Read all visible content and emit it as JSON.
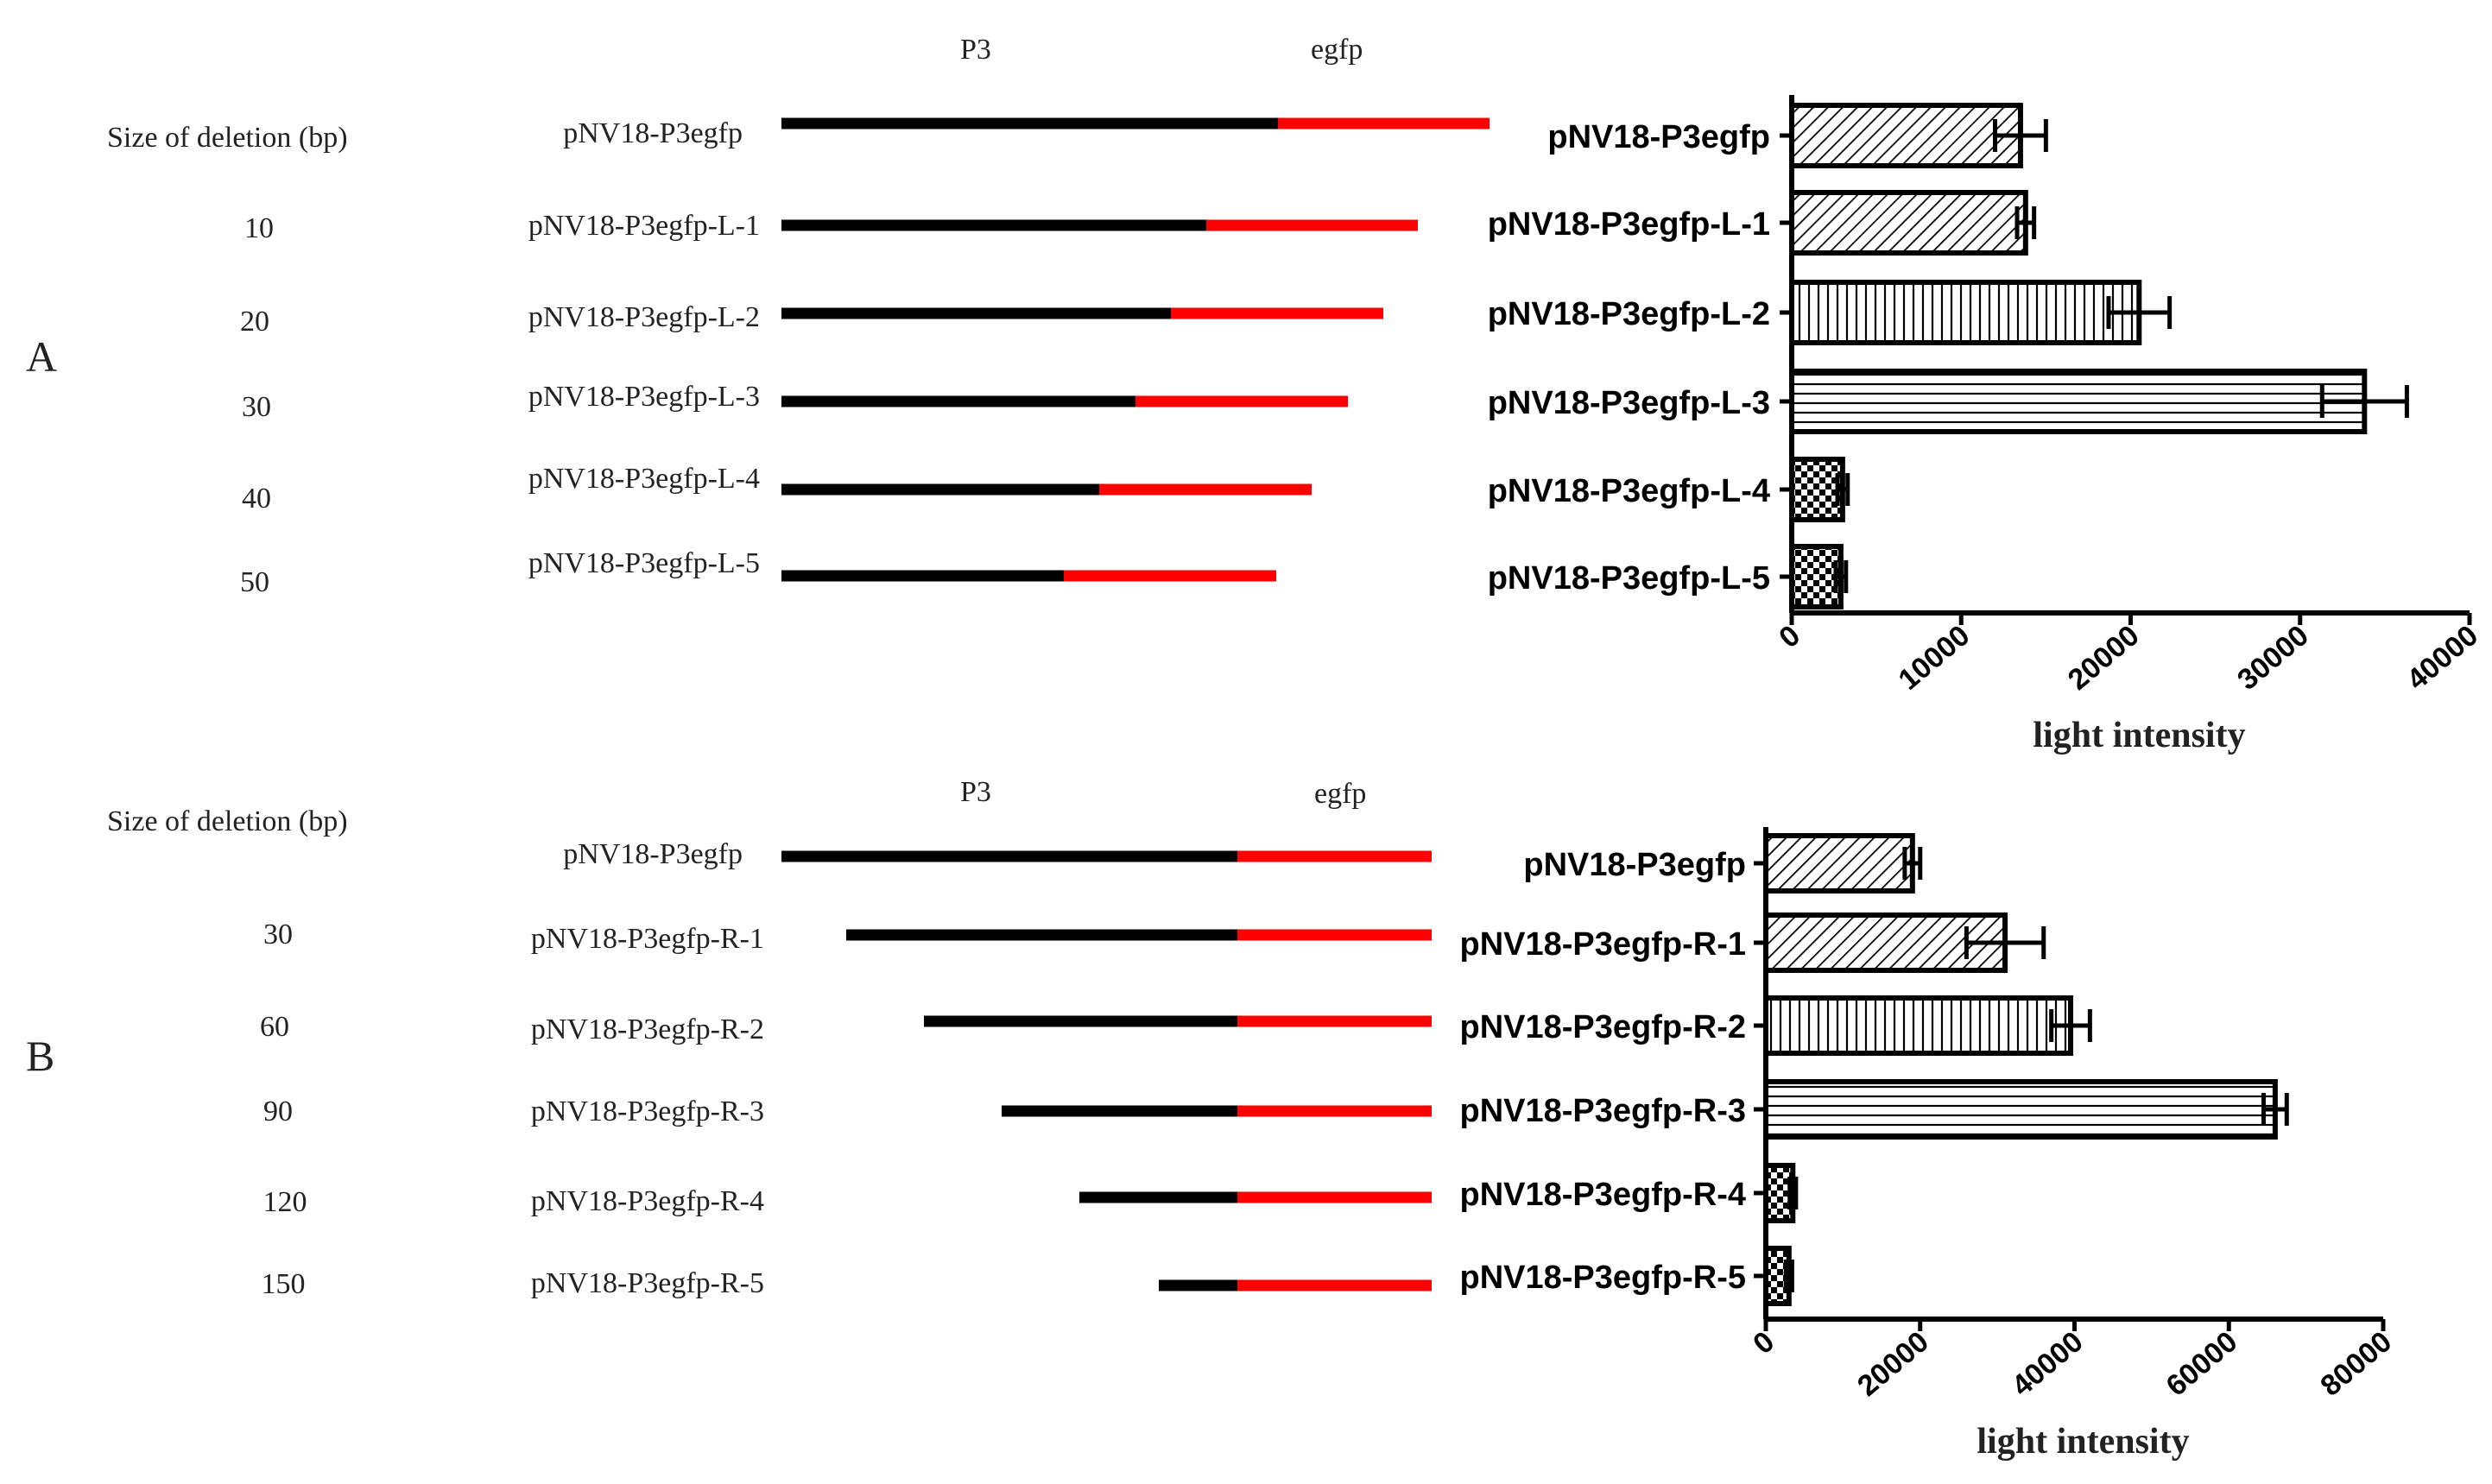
{
  "colors": {
    "promoter": "#000000",
    "reporter": "#ff0000",
    "axis": "#000000"
  },
  "panels": [
    {
      "label": "A",
      "header": {
        "size_label": "Size of  deletion (bp)",
        "promoter_label": "P3",
        "reporter_label": "egfp"
      },
      "constructs": [
        {
          "size": "",
          "name": "pNV18-P3egfp"
        },
        {
          "size": "10",
          "name": "pNV18-P3egfp-L-1"
        },
        {
          "size": "20",
          "name": "pNV18-P3egfp-L-2"
        },
        {
          "size": "30",
          "name": "pNV18-P3egfp-L-3"
        },
        {
          "size": "40",
          "name": "pNV18-P3egfp-L-4"
        },
        {
          "size": "50",
          "name": "pNV18-P3egfp-L-5"
        }
      ]
    },
    {
      "label": "B",
      "header": {
        "size_label": "Size of  deletion (bp)",
        "promoter_label": "P3",
        "reporter_label": "egfp"
      },
      "constructs": [
        {
          "size": "",
          "name": "pNV18-P3egfp"
        },
        {
          "size": "30",
          "name": "pNV18-P3egfp-R-1"
        },
        {
          "size": "60",
          "name": "pNV18-P3egfp-R-2"
        },
        {
          "size": "90",
          "name": "pNV18-P3egfp-R-3"
        },
        {
          "size": "120",
          "name": "pNV18-P3egfp-R-4"
        },
        {
          "size": "150",
          "name": "pNV18-P3egfp-R-5"
        }
      ]
    }
  ],
  "chart_data": [
    {
      "type": "bar",
      "orientation": "horizontal",
      "panel": "A",
      "categories": [
        "pNV18-P3egfp",
        "pNV18-P3egfp-L-1",
        "pNV18-P3egfp-L-2",
        "pNV18-P3egfp-L-3",
        "pNV18-P3egfp-L-4",
        "pNV18-P3egfp-L-5"
      ],
      "values": [
        13500,
        13800,
        20500,
        33800,
        3000,
        2900
      ],
      "errors": [
        1500,
        500,
        1800,
        2500,
        300,
        300
      ],
      "patterns": [
        "diag",
        "diag",
        "vert",
        "horiz",
        "check",
        "check"
      ],
      "xlabel": "light intensity",
      "xlim": [
        0,
        40000
      ],
      "ticks": [
        0,
        10000,
        20000,
        30000,
        40000
      ],
      "tick_labels": [
        "0",
        "10000",
        "20000",
        "30000",
        "40000"
      ]
    },
    {
      "type": "bar",
      "orientation": "horizontal",
      "panel": "B",
      "categories": [
        "pNV18-P3egfp",
        "pNV18-P3egfp-R-1",
        "pNV18-P3egfp-R-2",
        "pNV18-P3egfp-R-3",
        "pNV18-P3egfp-R-4",
        "pNV18-P3egfp-R-5"
      ],
      "values": [
        19000,
        31000,
        39500,
        66000,
        3500,
        3000
      ],
      "errors": [
        1000,
        5000,
        2500,
        1500,
        400,
        400
      ],
      "patterns": [
        "diag",
        "diag",
        "vert",
        "horiz",
        "check",
        "check"
      ],
      "xlabel": "light intensity",
      "xlim": [
        0,
        80000
      ],
      "ticks": [
        0,
        20000,
        40000,
        60000,
        80000
      ],
      "tick_labels": [
        "0",
        "20000",
        "40000",
        "60000",
        "80000"
      ]
    }
  ]
}
